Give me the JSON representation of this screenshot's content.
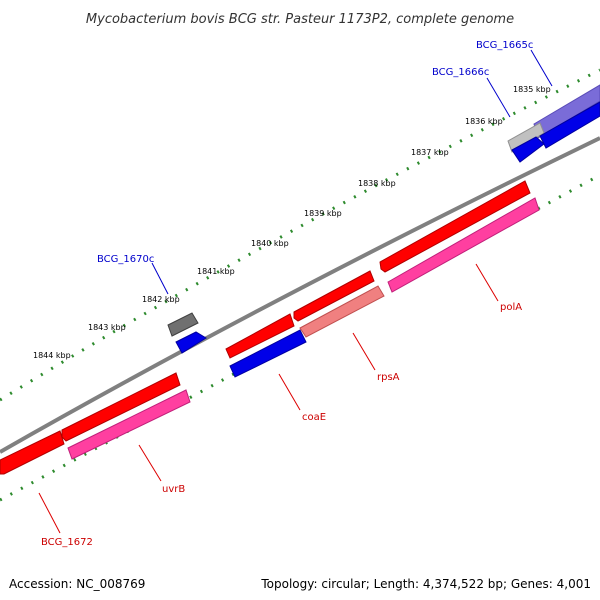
{
  "title": "Mycobacterium bovis BCG str. Pasteur 1173P2, complete genome",
  "footer": {
    "accession": "Accession: NC_008769",
    "topology": "Topology: circular; Length: 4,374,522 bp; Genes: 4,001"
  },
  "colors": {
    "backbone": "#808080",
    "tick": "#2e8b2e",
    "cds_red": "#ff0000",
    "cds_pink": "#ff3fa0",
    "cds_salmon": "#f08080",
    "cds_blue": "#0000e8",
    "cds_purple": "#7a6cd8",
    "cds_gray": "#c0c0c0",
    "cds_dark": "#707070",
    "label_blue": "#0000cc",
    "label_red": "#cc0000",
    "leader_blue": "#0000cc",
    "leader_red": "#dd0000"
  },
  "scale_labels": [
    "1835 kbp",
    "1836 kbp",
    "1837 kbp",
    "1838 kbp",
    "1839 kbp",
    "1840 kbp",
    "1841 kbp",
    "1842 kbp",
    "1843 kbp",
    "1844 kbp"
  ],
  "genes": [
    {
      "label": "BCG_1665c",
      "label_color": "blue"
    },
    {
      "label": "BCG_1666c",
      "label_color": "blue"
    },
    {
      "label": "BCG_1670c",
      "label_color": "blue"
    },
    {
      "label": "polA",
      "label_color": "red"
    },
    {
      "label": "rpsA",
      "label_color": "red"
    },
    {
      "label": "coaE",
      "label_color": "red"
    },
    {
      "label": "uvrB",
      "label_color": "red"
    },
    {
      "label": "BCG_1672",
      "label_color": "red"
    }
  ]
}
